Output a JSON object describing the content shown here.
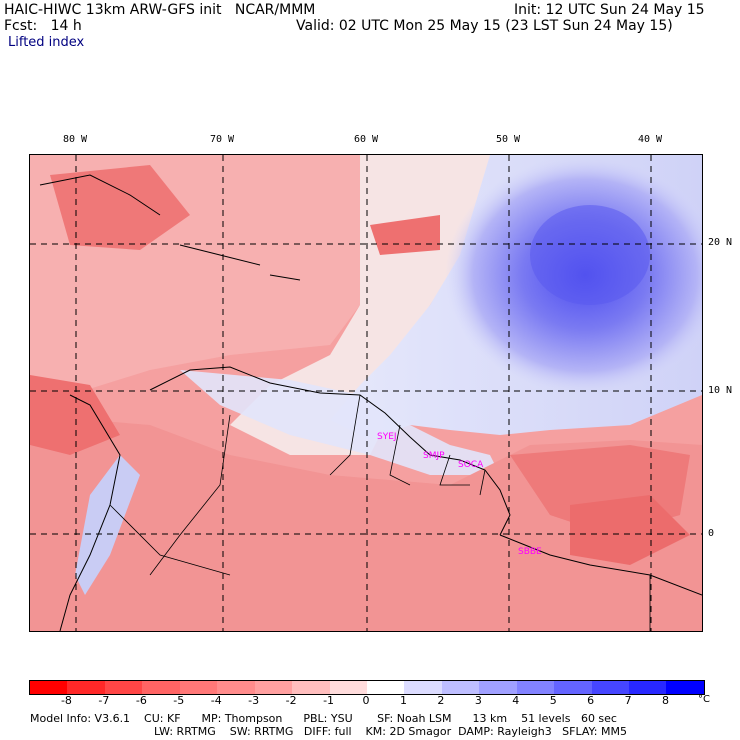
{
  "header": {
    "title_left": "HAIC-HIWC 13km ARW-GFS init   NCAR/MMM",
    "init": "Init: 12 UTC Sun 24 May 15",
    "fcst": "Fcst:   14 h",
    "valid": "Valid: 02 UTC Mon 25 May 15 (23 LST Sun 24 May 15)",
    "field": "Lifted index"
  },
  "axes": {
    "lon_labels": [
      "80 W",
      "70 W",
      "60 W",
      "50 W",
      "40 W"
    ],
    "lat_labels": [
      "20 N",
      "10 N",
      "0"
    ]
  },
  "sites": [
    "SYEJ",
    "SMJP",
    "SOCA",
    "SBBE"
  ],
  "colorbar": {
    "colors": [
      "#ff0000",
      "#ff2828",
      "#ff4646",
      "#ff6464",
      "#ff7878",
      "#ff8c8c",
      "#ffa0a0",
      "#ffbebe",
      "#ffdcdc",
      "#ffffff",
      "#dcdcff",
      "#bebeff",
      "#a0a0ff",
      "#8282ff",
      "#6464ff",
      "#4646ff",
      "#2828ff",
      "#0000ff"
    ],
    "ticks": [
      "-8",
      "-7",
      "-6",
      "-5",
      "-4",
      "-3",
      "-2",
      "-1",
      "0",
      "1",
      "2",
      "3",
      "4",
      "5",
      "6",
      "7",
      "8"
    ],
    "unit": "°C"
  },
  "footer": {
    "line1": "Model Info: V3.6.1    CU: KF      MP: Thompson      PBL: YSU       SF: Noah LSM      13 km    51 levels   60 sec",
    "line2": "LW: RRTMG    SW: RRTMG   DIFF: full    KM: 2D Smagor  DAMP: Rayleigh3   SFLAY: MM5"
  }
}
